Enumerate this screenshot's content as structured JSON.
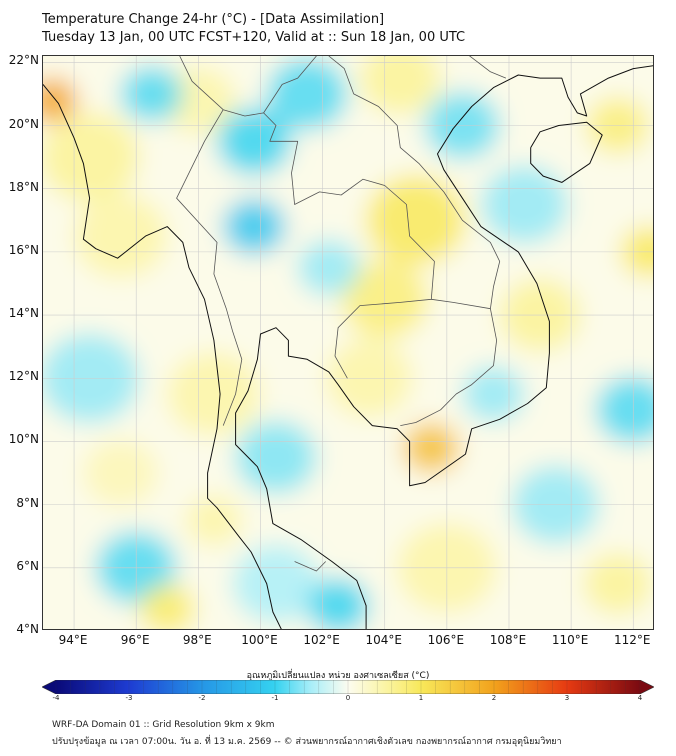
{
  "title": {
    "line1": "Temperature Change 24-hr (°C) - [Data Assimilation]",
    "line2": "Tuesday 13 Jan, 00 UTC FCST+120, Valid at :: Sun 18 Jan, 00 UTC"
  },
  "map": {
    "lon_range": [
      93,
      112.7
    ],
    "lat_range": [
      4,
      22.2
    ],
    "lat_labels": [
      "22°N",
      "20°N",
      "18°N",
      "16°N",
      "14°N",
      "12°N",
      "10°N",
      "8°N",
      "6°N",
      "4°N"
    ],
    "lat_values": [
      22,
      20,
      18,
      16,
      14,
      12,
      10,
      8,
      6,
      4
    ],
    "lon_labels": [
      "94°E",
      "96°E",
      "98°E",
      "100°E",
      "102°E",
      "104°E",
      "106°E",
      "108°E",
      "110°E",
      "112°E"
    ],
    "lon_values": [
      94,
      96,
      98,
      100,
      102,
      104,
      106,
      108,
      110,
      112
    ],
    "field_blobs": [
      {
        "lon": 93.3,
        "lat": 20.8,
        "value": 2.0,
        "spread": 0.8
      },
      {
        "lon": 94.5,
        "lat": 19.0,
        "value": 0.6,
        "spread": 1.6
      },
      {
        "lon": 95.5,
        "lat": 16.5,
        "value": 0.5,
        "spread": 1.5
      },
      {
        "lon": 98.0,
        "lat": 20.8,
        "value": 0.5,
        "spread": 1.2
      },
      {
        "lon": 96.5,
        "lat": 21.0,
        "value": -0.9,
        "spread": 1.0
      },
      {
        "lon": 99.8,
        "lat": 19.5,
        "value": -1.0,
        "spread": 1.2
      },
      {
        "lon": 99.8,
        "lat": 16.8,
        "value": -1.2,
        "spread": 1.0
      },
      {
        "lon": 101.5,
        "lat": 21.0,
        "value": -0.9,
        "spread": 1.3
      },
      {
        "lon": 104.5,
        "lat": 21.5,
        "value": 0.6,
        "spread": 1.3
      },
      {
        "lon": 106.5,
        "lat": 20.0,
        "value": -0.8,
        "spread": 1.2
      },
      {
        "lon": 105.0,
        "lat": 17.0,
        "value": 1.0,
        "spread": 1.6
      },
      {
        "lon": 104.0,
        "lat": 14.5,
        "value": 0.8,
        "spread": 1.4
      },
      {
        "lon": 102.2,
        "lat": 15.5,
        "value": -0.6,
        "spread": 1.0
      },
      {
        "lon": 108.5,
        "lat": 17.5,
        "value": -0.6,
        "spread": 1.4
      },
      {
        "lon": 111.5,
        "lat": 20.0,
        "value": 0.8,
        "spread": 1.0
      },
      {
        "lon": 112.5,
        "lat": 16.0,
        "value": 1.0,
        "spread": 0.9
      },
      {
        "lon": 109.0,
        "lat": 14.0,
        "value": 0.6,
        "spread": 1.3
      },
      {
        "lon": 105.5,
        "lat": 9.8,
        "value": 1.6,
        "spread": 0.9
      },
      {
        "lon": 103.5,
        "lat": 12.0,
        "value": 0.5,
        "spread": 1.4
      },
      {
        "lon": 98.5,
        "lat": 11.5,
        "value": 0.5,
        "spread": 1.5
      },
      {
        "lon": 100.5,
        "lat": 9.5,
        "value": -0.7,
        "spread": 1.3
      },
      {
        "lon": 94.5,
        "lat": 12.0,
        "value": -0.6,
        "spread": 1.6
      },
      {
        "lon": 95.5,
        "lat": 9.0,
        "value": 0.4,
        "spread": 1.2
      },
      {
        "lon": 96.0,
        "lat": 6.0,
        "value": -0.9,
        "spread": 1.3
      },
      {
        "lon": 97.0,
        "lat": 4.7,
        "value": 0.9,
        "spread": 0.9
      },
      {
        "lon": 100.5,
        "lat": 5.5,
        "value": -0.5,
        "spread": 1.4
      },
      {
        "lon": 102.5,
        "lat": 4.8,
        "value": -1.0,
        "spread": 1.0
      },
      {
        "lon": 106.0,
        "lat": 6.0,
        "value": 0.5,
        "spread": 1.6
      },
      {
        "lon": 109.5,
        "lat": 8.0,
        "value": -0.6,
        "spread": 1.4
      },
      {
        "lon": 112.0,
        "lat": 11.0,
        "value": -0.9,
        "spread": 1.2
      },
      {
        "lon": 111.5,
        "lat": 5.5,
        "value": 0.6,
        "spread": 1.1
      },
      {
        "lon": 98.5,
        "lat": 7.5,
        "value": 0.5,
        "spread": 0.9
      },
      {
        "lon": 107.5,
        "lat": 11.5,
        "value": -0.6,
        "spread": 1.0
      }
    ],
    "coastlines": [
      [
        [
          93.0,
          21.3
        ],
        [
          93.5,
          20.7
        ],
        [
          94.0,
          19.6
        ],
        [
          94.3,
          18.8
        ],
        [
          94.5,
          17.7
        ],
        [
          94.3,
          16.4
        ],
        [
          94.7,
          16.1
        ],
        [
          95.4,
          15.8
        ],
        [
          96.3,
          16.5
        ],
        [
          97.0,
          16.8
        ],
        [
          97.5,
          16.3
        ],
        [
          97.7,
          15.5
        ],
        [
          98.2,
          14.5
        ],
        [
          98.5,
          13.2
        ],
        [
          98.7,
          11.5
        ],
        [
          98.6,
          10.4
        ],
        [
          98.3,
          9.0
        ],
        [
          98.3,
          8.2
        ],
        [
          98.6,
          7.9
        ],
        [
          99.3,
          7.0
        ],
        [
          99.7,
          6.5
        ],
        [
          100.2,
          5.5
        ],
        [
          100.4,
          4.6
        ],
        [
          100.7,
          4.0
        ]
      ],
      [
        [
          103.4,
          4.0
        ],
        [
          103.4,
          4.8
        ],
        [
          103.1,
          5.6
        ],
        [
          102.3,
          6.2
        ],
        [
          101.3,
          6.9
        ],
        [
          100.4,
          7.4
        ],
        [
          100.2,
          8.5
        ],
        [
          99.9,
          9.2
        ],
        [
          99.2,
          9.9
        ],
        [
          99.2,
          10.9
        ],
        [
          99.6,
          11.6
        ],
        [
          99.9,
          12.6
        ],
        [
          100.0,
          13.4
        ],
        [
          100.5,
          13.6
        ],
        [
          100.9,
          13.2
        ],
        [
          100.9,
          12.7
        ],
        [
          101.5,
          12.6
        ],
        [
          102.2,
          12.2
        ],
        [
          102.5,
          11.8
        ],
        [
          103.0,
          11.1
        ],
        [
          103.6,
          10.5
        ],
        [
          104.4,
          10.4
        ],
        [
          104.8,
          10.0
        ],
        [
          104.8,
          8.6
        ],
        [
          105.3,
          8.7
        ],
        [
          106.6,
          9.6
        ],
        [
          106.8,
          10.4
        ],
        [
          107.7,
          10.7
        ],
        [
          108.6,
          11.2
        ],
        [
          109.2,
          11.7
        ],
        [
          109.3,
          12.8
        ],
        [
          109.3,
          13.8
        ],
        [
          108.9,
          15.0
        ],
        [
          108.3,
          16.0
        ],
        [
          107.1,
          16.8
        ],
        [
          106.5,
          17.7
        ],
        [
          105.9,
          18.6
        ],
        [
          105.7,
          19.1
        ],
        [
          106.2,
          19.9
        ],
        [
          106.8,
          20.6
        ],
        [
          107.5,
          21.2
        ],
        [
          108.3,
          21.6
        ],
        [
          109.0,
          21.5
        ],
        [
          109.7,
          21.5
        ],
        [
          109.9,
          20.9
        ],
        [
          110.2,
          20.4
        ],
        [
          110.5,
          20.3
        ],
        [
          110.3,
          21.0
        ],
        [
          111.2,
          21.5
        ],
        [
          112.0,
          21.8
        ],
        [
          112.7,
          21.9
        ]
      ],
      [
        [
          108.7,
          19.3
        ],
        [
          109.0,
          19.8
        ],
        [
          109.6,
          20.0
        ],
        [
          110.5,
          20.1
        ],
        [
          111.0,
          19.7
        ],
        [
          110.6,
          18.8
        ],
        [
          109.7,
          18.2
        ],
        [
          109.1,
          18.4
        ],
        [
          108.7,
          18.8
        ],
        [
          108.7,
          19.3
        ]
      ]
    ],
    "borders": [
      [
        [
          97.4,
          22.2
        ],
        [
          97.8,
          21.4
        ],
        [
          98.8,
          20.5
        ],
        [
          99.5,
          20.3
        ],
        [
          100.1,
          20.4
        ],
        [
          100.5,
          20.0
        ],
        [
          100.3,
          19.5
        ],
        [
          101.2,
          19.5
        ],
        [
          101.0,
          18.5
        ],
        [
          101.1,
          17.5
        ],
        [
          101.9,
          17.9
        ],
        [
          102.6,
          17.8
        ],
        [
          103.3,
          18.3
        ],
        [
          104.0,
          18.1
        ],
        [
          104.7,
          17.5
        ],
        [
          104.8,
          16.5
        ],
        [
          105.6,
          15.7
        ],
        [
          105.5,
          14.5
        ],
        [
          104.5,
          14.4
        ],
        [
          103.2,
          14.3
        ],
        [
          102.5,
          13.6
        ],
        [
          102.4,
          12.7
        ],
        [
          102.8,
          12.0
        ]
      ],
      [
        [
          98.8,
          20.5
        ],
        [
          98.2,
          19.5
        ],
        [
          97.7,
          18.5
        ],
        [
          97.3,
          17.7
        ],
        [
          98.6,
          16.3
        ],
        [
          98.5,
          15.3
        ],
        [
          98.9,
          14.2
        ],
        [
          99.1,
          13.5
        ],
        [
          99.4,
          12.6
        ],
        [
          99.2,
          11.5
        ],
        [
          98.8,
          10.5
        ]
      ],
      [
        [
          100.1,
          20.4
        ],
        [
          100.7,
          21.3
        ],
        [
          101.2,
          21.5
        ],
        [
          101.8,
          22.2
        ]
      ],
      [
        [
          102.2,
          22.2
        ],
        [
          102.7,
          21.8
        ],
        [
          103.0,
          21.0
        ],
        [
          103.8,
          20.6
        ],
        [
          104.4,
          20.0
        ],
        [
          104.5,
          19.3
        ],
        [
          105.1,
          18.8
        ],
        [
          105.9,
          17.9
        ],
        [
          106.5,
          17.0
        ],
        [
          107.4,
          16.3
        ],
        [
          107.7,
          15.7
        ],
        [
          107.5,
          14.9
        ],
        [
          107.4,
          14.2
        ],
        [
          107.6,
          13.2
        ],
        [
          107.5,
          12.4
        ],
        [
          106.8,
          11.8
        ],
        [
          106.3,
          11.5
        ],
        [
          105.8,
          11.0
        ],
        [
          105.0,
          10.6
        ],
        [
          104.5,
          10.5
        ]
      ],
      [
        [
          105.5,
          14.5
        ],
        [
          106.2,
          14.4
        ],
        [
          107.4,
          14.2
        ]
      ],
      [
        [
          104.0,
          22.2
        ],
        [
          104.8,
          22.8
        ],
        [
          105.7,
          22.9
        ],
        [
          106.6,
          22.3
        ],
        [
          107.4,
          21.7
        ],
        [
          107.9,
          21.5
        ]
      ],
      [
        [
          101.1,
          6.2
        ],
        [
          101.8,
          5.9
        ],
        [
          102.1,
          6.2
        ]
      ]
    ]
  },
  "colorbar": {
    "title": "อุณหภูมิเปลี่ยนแปลง หน่วย องศาเซลเซียส (°C)",
    "ticks": [
      "-4",
      "-3",
      "-2",
      "-1",
      "0",
      "1",
      "2",
      "3",
      "4"
    ],
    "tick_values": [
      -4,
      -3,
      -2,
      -1,
      0,
      1,
      2,
      3,
      4
    ],
    "range": [
      -4,
      4
    ],
    "color_stops": [
      {
        "v": -4,
        "c": "#0a0a78"
      },
      {
        "v": -3,
        "c": "#1e3cd2"
      },
      {
        "v": -2,
        "c": "#2596e6"
      },
      {
        "v": -1,
        "c": "#35d2f0"
      },
      {
        "v": -0.5,
        "c": "#aaeef8"
      },
      {
        "v": 0,
        "c": "#fcfcf0"
      },
      {
        "v": 0.5,
        "c": "#fbf5a6"
      },
      {
        "v": 1,
        "c": "#f8e85a"
      },
      {
        "v": 2,
        "c": "#f2a21c"
      },
      {
        "v": 3,
        "c": "#e63a12"
      },
      {
        "v": 4,
        "c": "#7a0a12"
      }
    ]
  },
  "footer": {
    "line1": "WRF-DA Domain 01 :: Grid Resolution 9km x 9km",
    "line2": "ปรับปรุงข้อมูล ณ เวลา 07:00น. วัน อ. ที่ 13 ม.ค. 2569 -- © ส่วนพยากรณ์อากาศเชิงตัวเลข กองพยากรณ์อากาศ กรมอุตุนิยมวิทยา"
  },
  "colors": {
    "coastline": "#111111",
    "border": "#555555",
    "gridline": "#cccccc"
  }
}
